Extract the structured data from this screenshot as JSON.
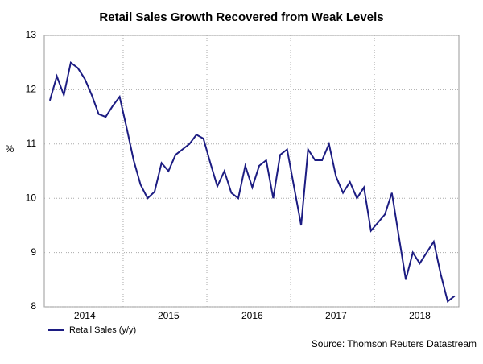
{
  "chart_data": {
    "type": "line",
    "title": "Retail Sales Growth Recovered from Weak Levels",
    "y_label": "%",
    "source": "Source: Thomson Reuters Datastream",
    "categories": [
      null,
      null,
      null,
      null,
      null,
      "2014",
      null,
      null,
      null,
      null,
      null,
      null,
      null,
      null,
      null,
      null,
      null,
      "2015",
      null,
      null,
      null,
      null,
      null,
      null,
      null,
      null,
      null,
      null,
      null,
      "2016",
      null,
      null,
      null,
      null,
      null,
      null,
      null,
      null,
      null,
      null,
      null,
      "2017",
      null,
      null,
      null,
      null,
      null,
      null,
      null,
      null,
      null,
      null,
      null,
      "2018",
      null,
      null,
      null,
      null,
      null
    ],
    "series": [
      {
        "name": "Retail Sales (y/y)",
        "color": "#1c1c82",
        "values": [
          11.8,
          12.25,
          11.9,
          12.5,
          12.4,
          12.2,
          11.9,
          11.55,
          11.5,
          11.7,
          11.87,
          11.3,
          10.7,
          10.25,
          10.0,
          10.12,
          10.65,
          10.5,
          10.8,
          10.9,
          11.0,
          11.17,
          11.1,
          10.65,
          10.22,
          10.5,
          10.1,
          10.0,
          10.6,
          10.2,
          10.6,
          10.7,
          10.0,
          10.8,
          10.9,
          10.2,
          9.5,
          10.9,
          10.7,
          10.7,
          11.0,
          10.4,
          10.1,
          10.3,
          10.0,
          10.2,
          9.4,
          9.55,
          9.7,
          10.1,
          9.3,
          8.5,
          9.0,
          8.8,
          9.0,
          9.2,
          8.6,
          8.1,
          8.2
        ]
      }
    ],
    "ylim": [
      8,
      13
    ],
    "yticks": [
      8,
      9,
      10,
      11,
      12,
      13
    ],
    "grid": true
  }
}
